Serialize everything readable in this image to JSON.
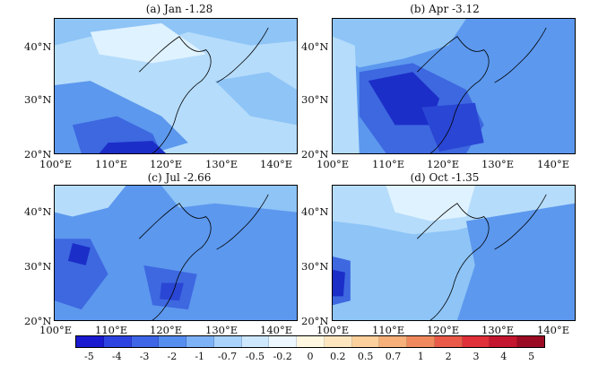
{
  "panels": [
    {
      "title": "(a) Jan -1.28"
    },
    {
      "title": "(b) Apr -3.12"
    },
    {
      "title": "(c) Jul -2.66"
    },
    {
      "title": "(d) Oct -1.35"
    }
  ],
  "axes": {
    "x_ticks": [
      "100°E",
      "110°E",
      "120°E",
      "130°E",
      "140°E"
    ],
    "y_ticks": [
      "40°N",
      "30°N",
      "20°N"
    ]
  },
  "colorbar": {
    "labels": [
      "-5",
      "-4",
      "-3",
      "-2",
      "-1",
      "-0.7",
      "-0.5",
      "-0.2",
      "0",
      "0.2",
      "0.5",
      "0.7",
      "1",
      "2",
      "3",
      "4",
      "5"
    ],
    "colors": [
      "#1a1ad0",
      "#2e44e0",
      "#3f66e6",
      "#568ef0",
      "#7eb2f6",
      "#a9d3fb",
      "#cde8fd",
      "#ecf7ff",
      "#fff7e0",
      "#fde6bf",
      "#fbd09c",
      "#f7b07a",
      "#f08a5e",
      "#ea5a48",
      "#e0303a",
      "#c4162e",
      "#9c0b24"
    ]
  },
  "colors": {
    "very_light": "#dff2ff",
    "light": "#b5dcfb",
    "mid": "#8ec4f6",
    "blue": "#5c98ee",
    "dark": "#3d68e0",
    "darker": "#2a46d4",
    "deepest": "#1c2ec8"
  }
}
